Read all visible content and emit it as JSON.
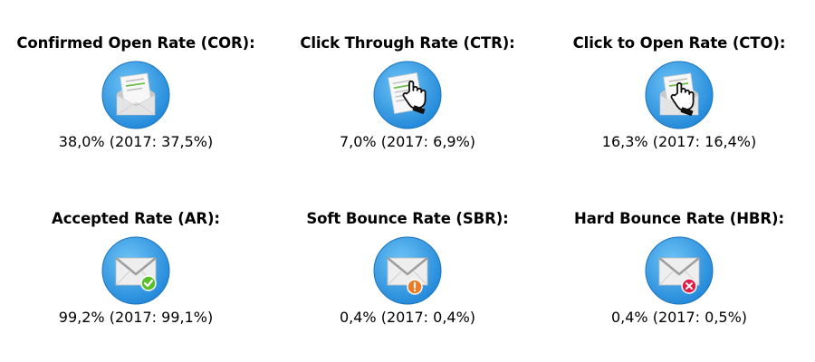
{
  "metrics": [
    {
      "title": "Confirmed Open Rate (COR):",
      "value": "38,0% (2017: 37,5%)",
      "icon": "open-envelope-icon"
    },
    {
      "title": "Click Through Rate (CTR):",
      "value": "7,0% (2017: 6,9%)",
      "icon": "document-click-icon"
    },
    {
      "title": "Click to Open Rate (CTO):",
      "value": "16,3% (2017: 16,4%)",
      "icon": "open-envelope-click-icon"
    },
    {
      "title": "Accepted Rate (AR):",
      "value": "99,2% (2017: 99,1%)",
      "icon": "envelope-check-icon"
    },
    {
      "title": "Soft Bounce Rate (SBR):",
      "value": "0,4% (2017: 0,4%)",
      "icon": "envelope-warning-icon"
    },
    {
      "title": "Hard Bounce Rate (HBR):",
      "value": "0,4% (2017: 0,5%)",
      "icon": "envelope-error-icon"
    }
  ],
  "colors": {
    "circle": "#3fa3ea",
    "circle_dark": "#1e86d6",
    "check_badge": "#5bbf2a",
    "warning_badge": "#f07a24",
    "error_badge": "#e11d48",
    "highlight_line": "#6cc04a"
  }
}
